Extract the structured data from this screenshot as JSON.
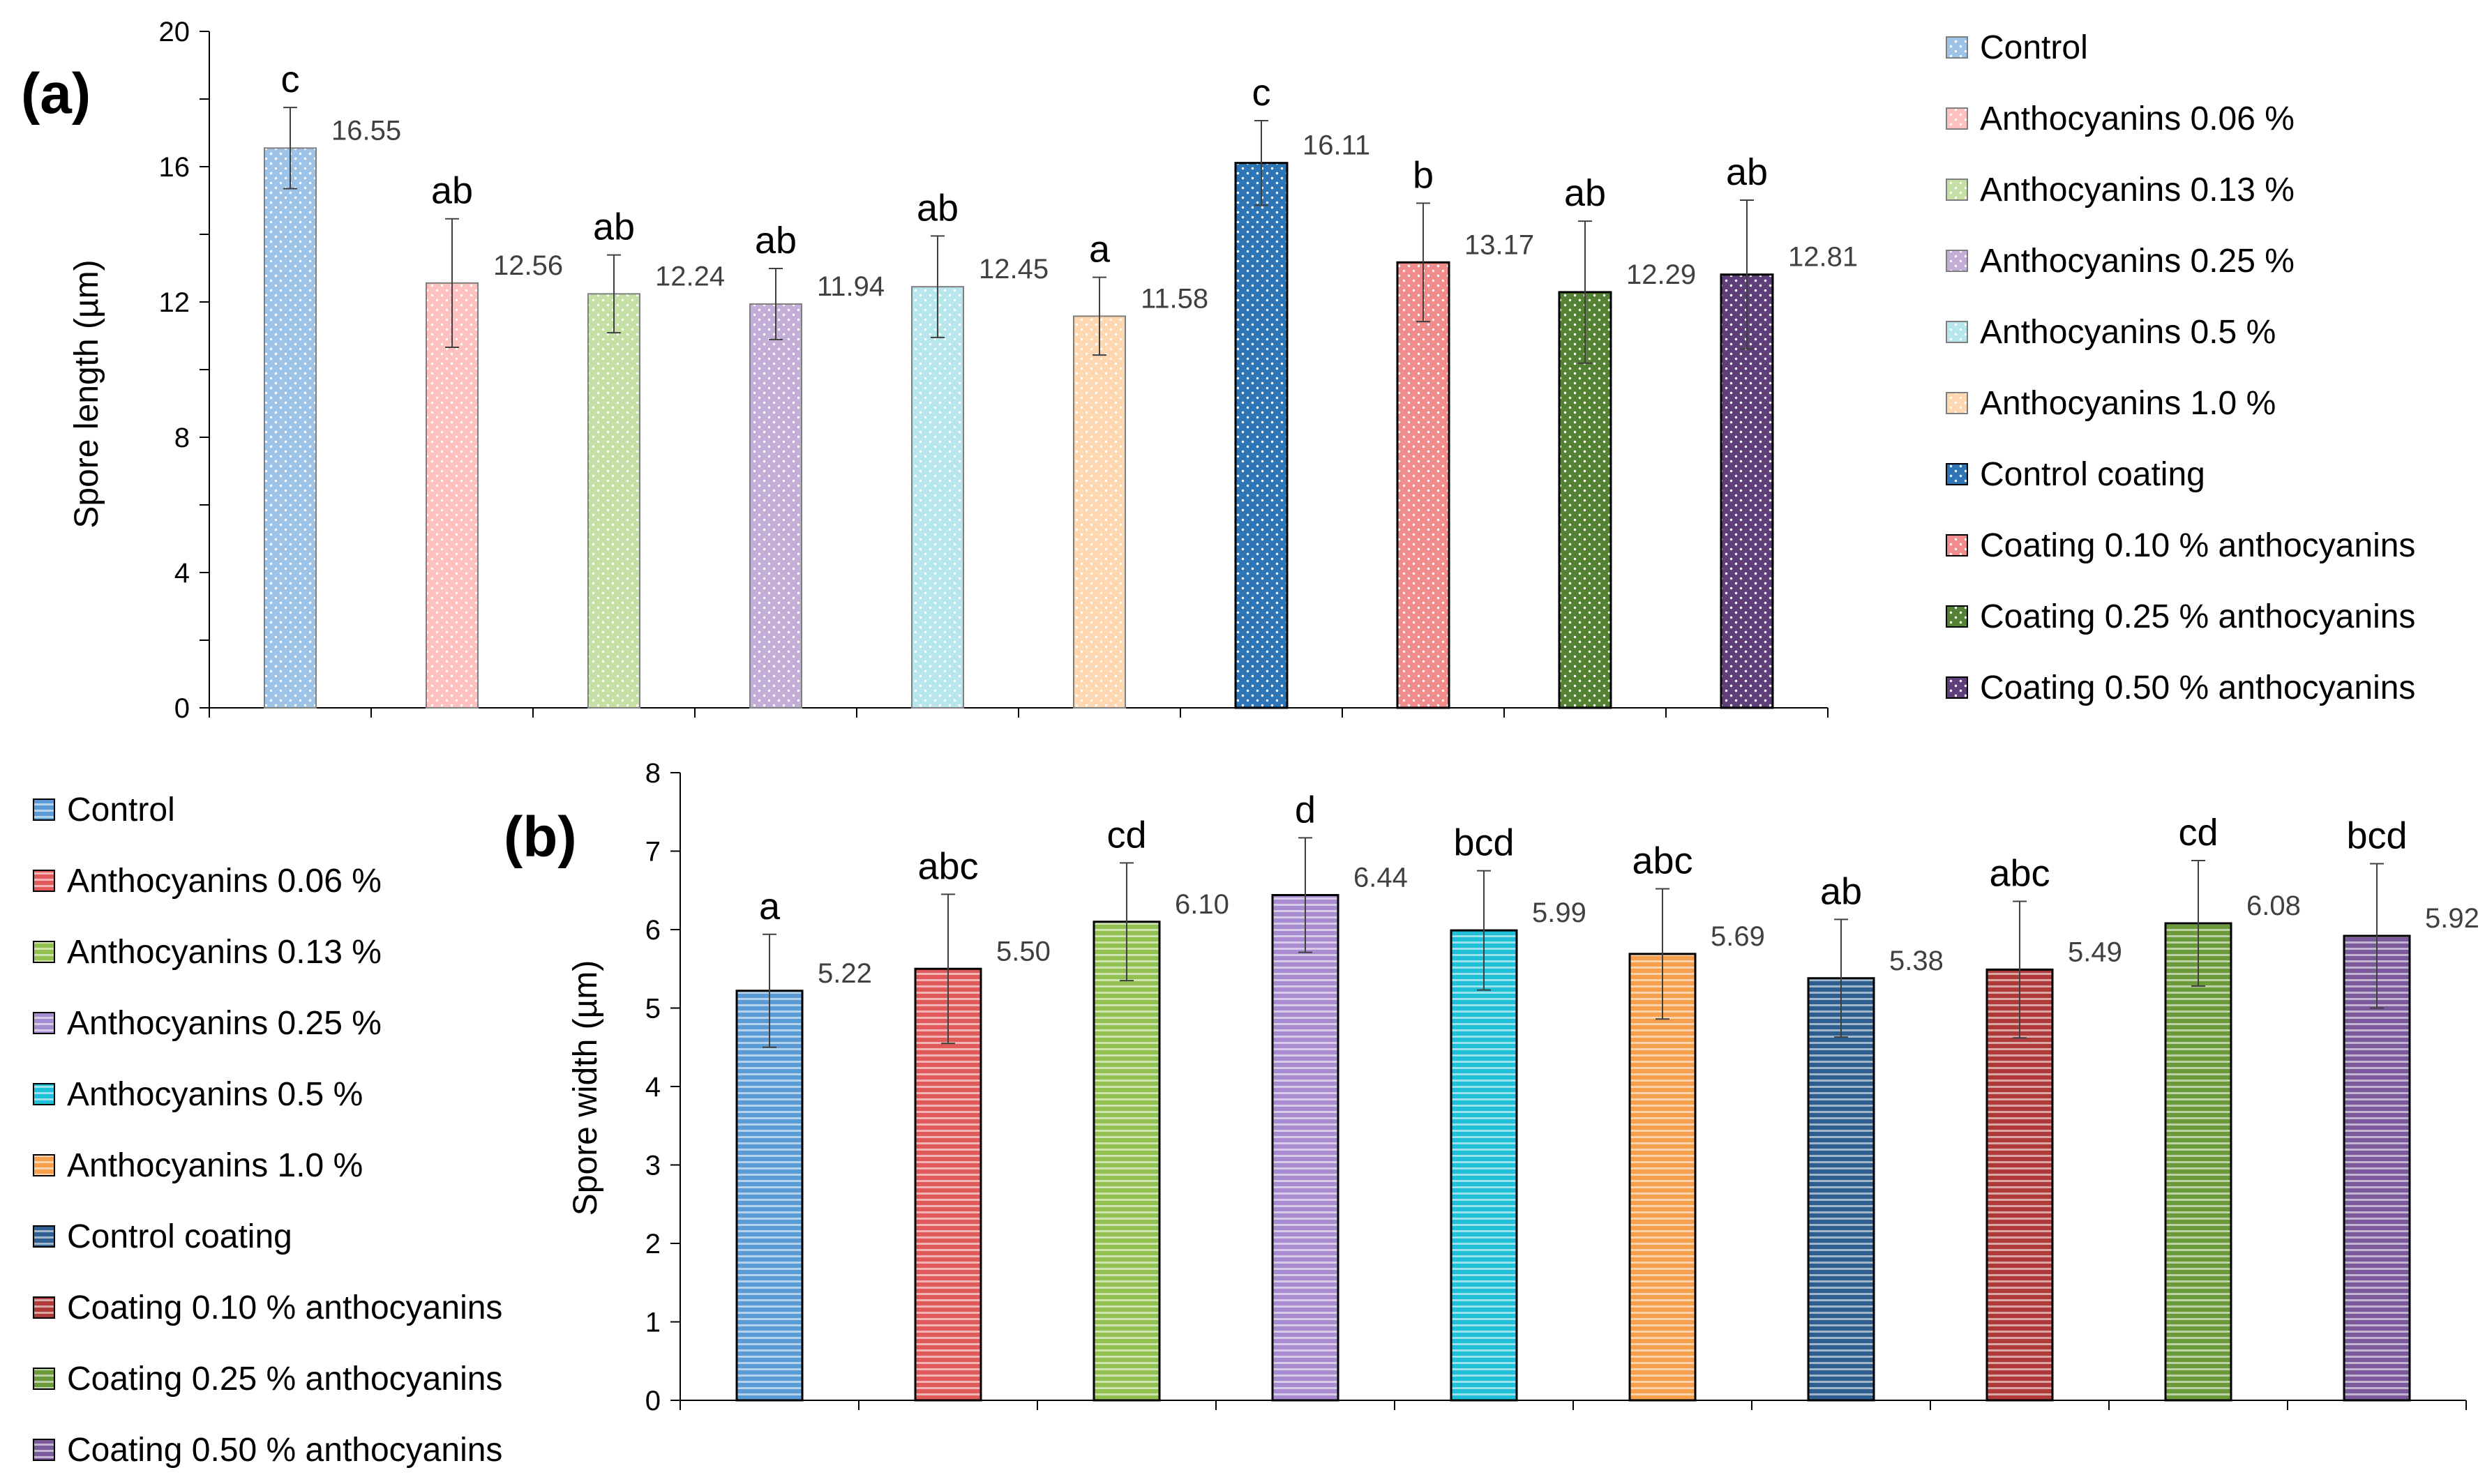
{
  "chart_data": [
    {
      "id": "a",
      "type": "bar",
      "panel_label": "(a)",
      "ylabel": "Spore length (µm)",
      "xlabel": "",
      "ylim": [
        0,
        20
      ],
      "yticks": [
        0,
        4,
        8,
        12,
        16,
        20
      ],
      "fill_pattern": "dots",
      "legend_position": "right",
      "categories": [
        "Control",
        "Anthocyanins 0.06 %",
        "Anthocyanins 0.13 %",
        "Anthocyanins 0.25 %",
        "Anthocyanins 0.5 %",
        "Anthocyanins 1.0 %",
        "Control coating",
        "Coating 0.10 % anthocyanins",
        "Coating 0.25 % anthocyanins",
        "Coating 0.50 % anthocyanins"
      ],
      "values": [
        16.55,
        12.56,
        12.24,
        11.94,
        12.45,
        11.58,
        16.11,
        13.17,
        12.29,
        12.81
      ],
      "value_labels": [
        "16.55",
        "12.56",
        "12.24",
        "11.94",
        "12.45",
        "11.58",
        "16.11",
        "13.17",
        "12.29",
        "12.81"
      ],
      "errors": [
        1.2,
        1.9,
        1.15,
        1.05,
        1.5,
        1.15,
        1.25,
        1.75,
        2.1,
        2.2
      ],
      "letters": [
        "c",
        "ab",
        "ab",
        "ab",
        "ab",
        "a",
        "c",
        "b",
        "ab",
        "ab"
      ],
      "colors": [
        "#9dc3e6",
        "#ffc0c0",
        "#c5e0a5",
        "#c3aed8",
        "#b7e6ec",
        "#ffd7b0",
        "#2e75b6",
        "#f08c8c",
        "#548235",
        "#5f3f7a"
      ],
      "legend": [
        "Control",
        "Anthocyanins 0.06 %",
        "Anthocyanins 0.13 %",
        "Anthocyanins 0.25 %",
        "Anthocyanins 0.5 %",
        "Anthocyanins 1.0 %",
        "Control coating",
        "Coating 0.10 % anthocyanins",
        "Coating 0.25 % anthocyanins",
        "Coating 0.50 % anthocyanins"
      ]
    },
    {
      "id": "b",
      "type": "bar",
      "panel_label": "(b)",
      "ylabel": "Spore width (µm)",
      "xlabel": "",
      "ylim": [
        0,
        8
      ],
      "yticks": [
        0,
        1,
        2,
        3,
        4,
        5,
        6,
        7,
        8
      ],
      "fill_pattern": "horizontal-lines",
      "legend_position": "left",
      "categories": [
        "Control",
        "Anthocyanins 0.06 %",
        "Anthocyanins 0.13 %",
        "Anthocyanins 0.25 %",
        "Anthocyanins 0.5 %",
        "Anthocyanins 1.0 %",
        "Control coating",
        "Coating 0.10 % anthocyanins",
        "Coating 0.25 % anthocyanins",
        "Coating 0.50 % anthocyanins"
      ],
      "values": [
        5.22,
        5.5,
        6.1,
        6.44,
        5.99,
        5.69,
        5.38,
        5.49,
        6.08,
        5.92
      ],
      "value_labels": [
        "5.22",
        "5.50",
        "6.10",
        "6.44",
        "5.99",
        "5.69",
        "5.38",
        "5.49",
        "6.08",
        "5.92"
      ],
      "errors": [
        0.72,
        0.95,
        0.75,
        0.73,
        0.76,
        0.83,
        0.75,
        0.87,
        0.8,
        0.92
      ],
      "letters": [
        "a",
        "abc",
        "cd",
        "d",
        "bcd",
        "abc",
        "ab",
        "abc",
        "cd",
        "bcd"
      ],
      "colors": [
        "#5b9bd5",
        "#e05a5a",
        "#92c050",
        "#a98bd0",
        "#1fc0d8",
        "#f6a04d",
        "#2f5f8f",
        "#b03a3a",
        "#6a9a3a",
        "#7a5a9a"
      ],
      "legend": [
        "Control",
        "Anthocyanins 0.06 %",
        "Anthocyanins 0.13 %",
        "Anthocyanins 0.25 %",
        "Anthocyanins 0.5 %",
        "Anthocyanins 1.0 %",
        "Control coating",
        "Coating 0.10 % anthocyanins",
        "Coating 0.25 % anthocyanins",
        "Coating 0.50 % anthocyanins"
      ]
    }
  ]
}
